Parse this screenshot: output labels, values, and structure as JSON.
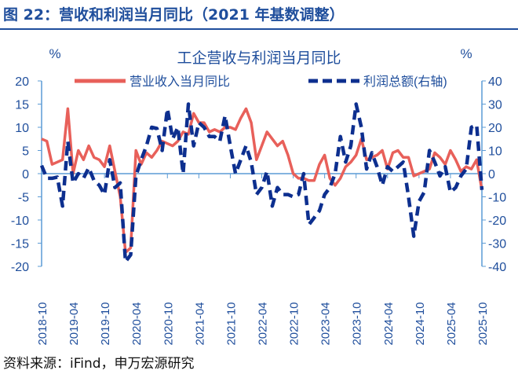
{
  "figure_title": "图 22：营收和利润当月同比（2021 年基数调整）",
  "source": "资料来源：iFind，申万宏源研究",
  "colors": {
    "revenue": "#e8605a",
    "profit": "#0d2f8f",
    "axis": "#5b9bd5",
    "title": "#1f4e9c"
  },
  "chart_data": {
    "type": "line",
    "title": "工企营收与利润当月同比",
    "left_unit": "%",
    "right_unit": "%",
    "left_ylim": [
      -20,
      20
    ],
    "right_ylim": [
      -40,
      40
    ],
    "left_ticks": [
      20,
      15,
      10,
      5,
      0,
      -5,
      -10,
      -15,
      -20
    ],
    "right_ticks": [
      40,
      30,
      20,
      10,
      0,
      -10,
      -20,
      -30,
      -40
    ],
    "x_start": "2018-10",
    "x_end": "2025-10",
    "x_tick_labels": [
      "2018-10",
      "2019-04",
      "2019-10",
      "2020-04",
      "2020-10",
      "2021-04",
      "2021-10",
      "2022-04",
      "2022-10",
      "2023-04",
      "2023-10",
      "2024-04",
      "2024-10",
      "2025-04",
      "2025-10"
    ],
    "legend_position": "top",
    "grid": false,
    "series": [
      {
        "name": "营业收入当月同比",
        "axis": "left",
        "style": "solid",
        "values": [
          7.5,
          7,
          2,
          2.5,
          3,
          14,
          0,
          5,
          3,
          6,
          3.5,
          3,
          1.5,
          6,
          0.5,
          -5,
          -17,
          -16,
          5,
          2,
          4.5,
          3.5,
          5,
          7,
          6.5,
          6,
          7,
          9,
          8.5,
          13,
          11,
          11,
          9,
          9.5,
          9,
          10,
          10,
          9.5,
          12,
          14,
          11,
          3,
          6,
          9,
          7.5,
          6,
          7,
          4,
          0,
          -1,
          -1,
          -1.5,
          -1.5,
          2,
          4,
          -1,
          -2.5,
          -1,
          1.5,
          2.5,
          4,
          7.5,
          3,
          3.5,
          4,
          5,
          1,
          4.5,
          5,
          3.5,
          3.5,
          -0.5,
          0,
          0.5,
          1,
          4.5,
          3.5,
          2,
          5,
          3,
          0.5,
          1.5,
          1,
          3,
          -3.5
        ]
      },
      {
        "name": "利润总额(右轴)",
        "axis": "right",
        "style": "dashed",
        "values": [
          3.5,
          -2,
          -2,
          -1.5,
          -14,
          14,
          -4,
          0,
          -2,
          2.5,
          -3,
          -5,
          -9,
          6,
          -6,
          -4,
          -38,
          -35,
          -1,
          6,
          12,
          20,
          19.5,
          10,
          28,
          15,
          20,
          0,
          30,
          12,
          22,
          20,
          16,
          16,
          14,
          25,
          12,
          0,
          6,
          12,
          5,
          -9,
          -6,
          1,
          -14,
          -6,
          -9,
          -9,
          -10,
          -9,
          0,
          -22,
          -19,
          -16,
          -9,
          -6,
          0,
          16,
          5,
          12,
          30,
          20,
          2,
          9,
          3,
          -5,
          3,
          1,
          3,
          5,
          -10,
          -27,
          -12,
          -8,
          10,
          5,
          -1,
          3,
          -8,
          -6,
          -1,
          2,
          20,
          21,
          -7
        ]
      }
    ]
  }
}
